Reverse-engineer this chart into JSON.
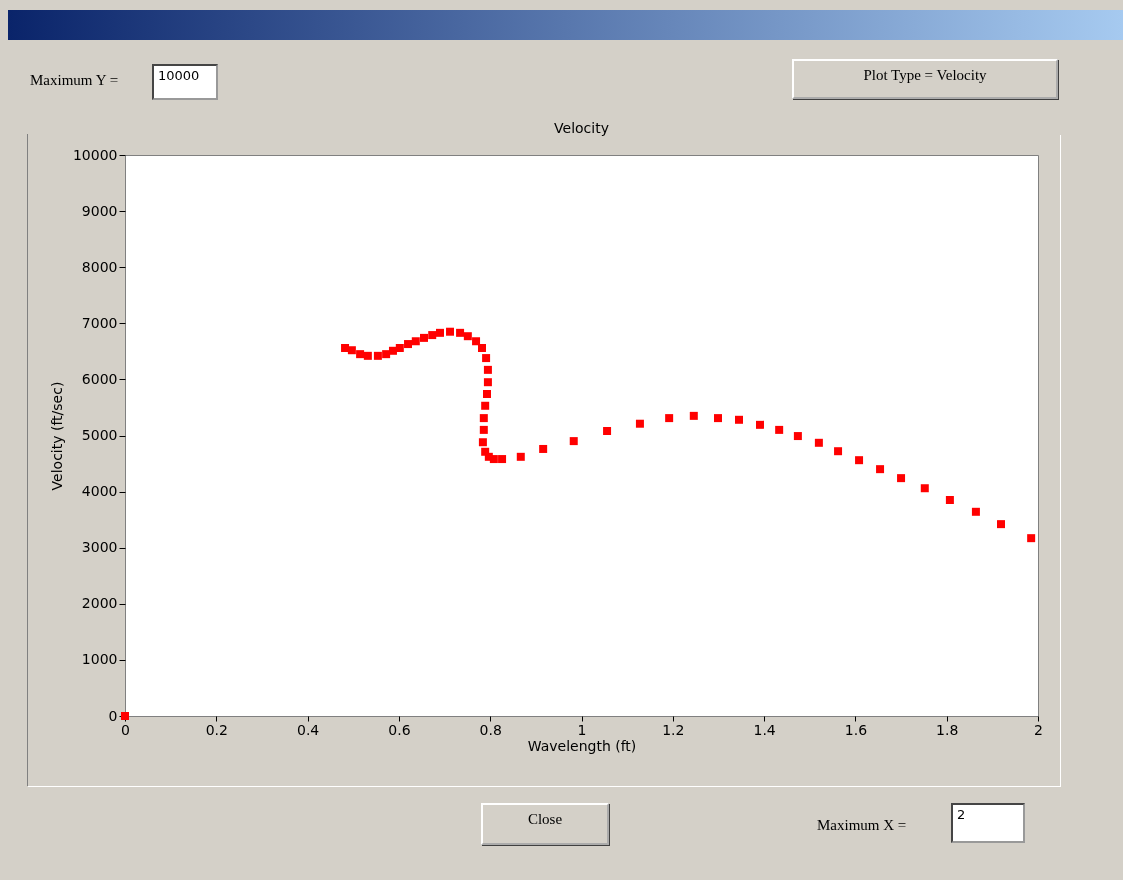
{
  "chart_data": {
    "type": "scatter",
    "title": "Velocity",
    "xlabel": "Wavelength (ft)",
    "ylabel": "Velocity (ft/sec)",
    "x": [
      0,
      0.482,
      0.497,
      0.515,
      0.532,
      0.554,
      0.572,
      0.587,
      0.602,
      0.62,
      0.637,
      0.655,
      0.673,
      0.69,
      0.712,
      0.734,
      0.751,
      0.769,
      0.782,
      0.791,
      0.795,
      0.795,
      0.793,
      0.789,
      0.786,
      0.786,
      0.784,
      0.789,
      0.797,
      0.808,
      0.826,
      0.867,
      0.916,
      0.983,
      1.056,
      1.128,
      1.192,
      1.246,
      1.299,
      1.345,
      1.391,
      1.433,
      1.474,
      1.52,
      1.562,
      1.608,
      1.654,
      1.7,
      1.752,
      1.807,
      1.864,
      1.919,
      1.985
    ],
    "values": [
      0,
      6560,
      6520,
      6450,
      6420,
      6420,
      6450,
      6510,
      6560,
      6630,
      6680,
      6740,
      6790,
      6830,
      6850,
      6830,
      6770,
      6680,
      6560,
      6380,
      6170,
      5950,
      5740,
      5530,
      5310,
      5100,
      4880,
      4710,
      4620,
      4580,
      4580,
      4620,
      4760,
      4900,
      5080,
      5210,
      5310,
      5350,
      5310,
      5280,
      5190,
      5100,
      4990,
      4870,
      4720,
      4560,
      4400,
      4240,
      4060,
      3850,
      3640,
      3420,
      3170
    ],
    "color": "#ff0000",
    "marker": "square",
    "grid": false,
    "xlim": [
      0,
      2
    ],
    "xticks": [
      0,
      0.2,
      0.4,
      0.6,
      0.8,
      1,
      1.2,
      1.4,
      1.6,
      1.8,
      2
    ],
    "ylim": [
      0,
      10000
    ],
    "yticks": [
      0,
      1000,
      2000,
      3000,
      4000,
      5000,
      6000,
      7000,
      8000,
      9000,
      10000
    ],
    "annotations": [
      "Maximum Y =",
      "10000",
      "Plot Type = Velocity",
      "Close",
      "Maximum X =",
      "2"
    ]
  }
}
